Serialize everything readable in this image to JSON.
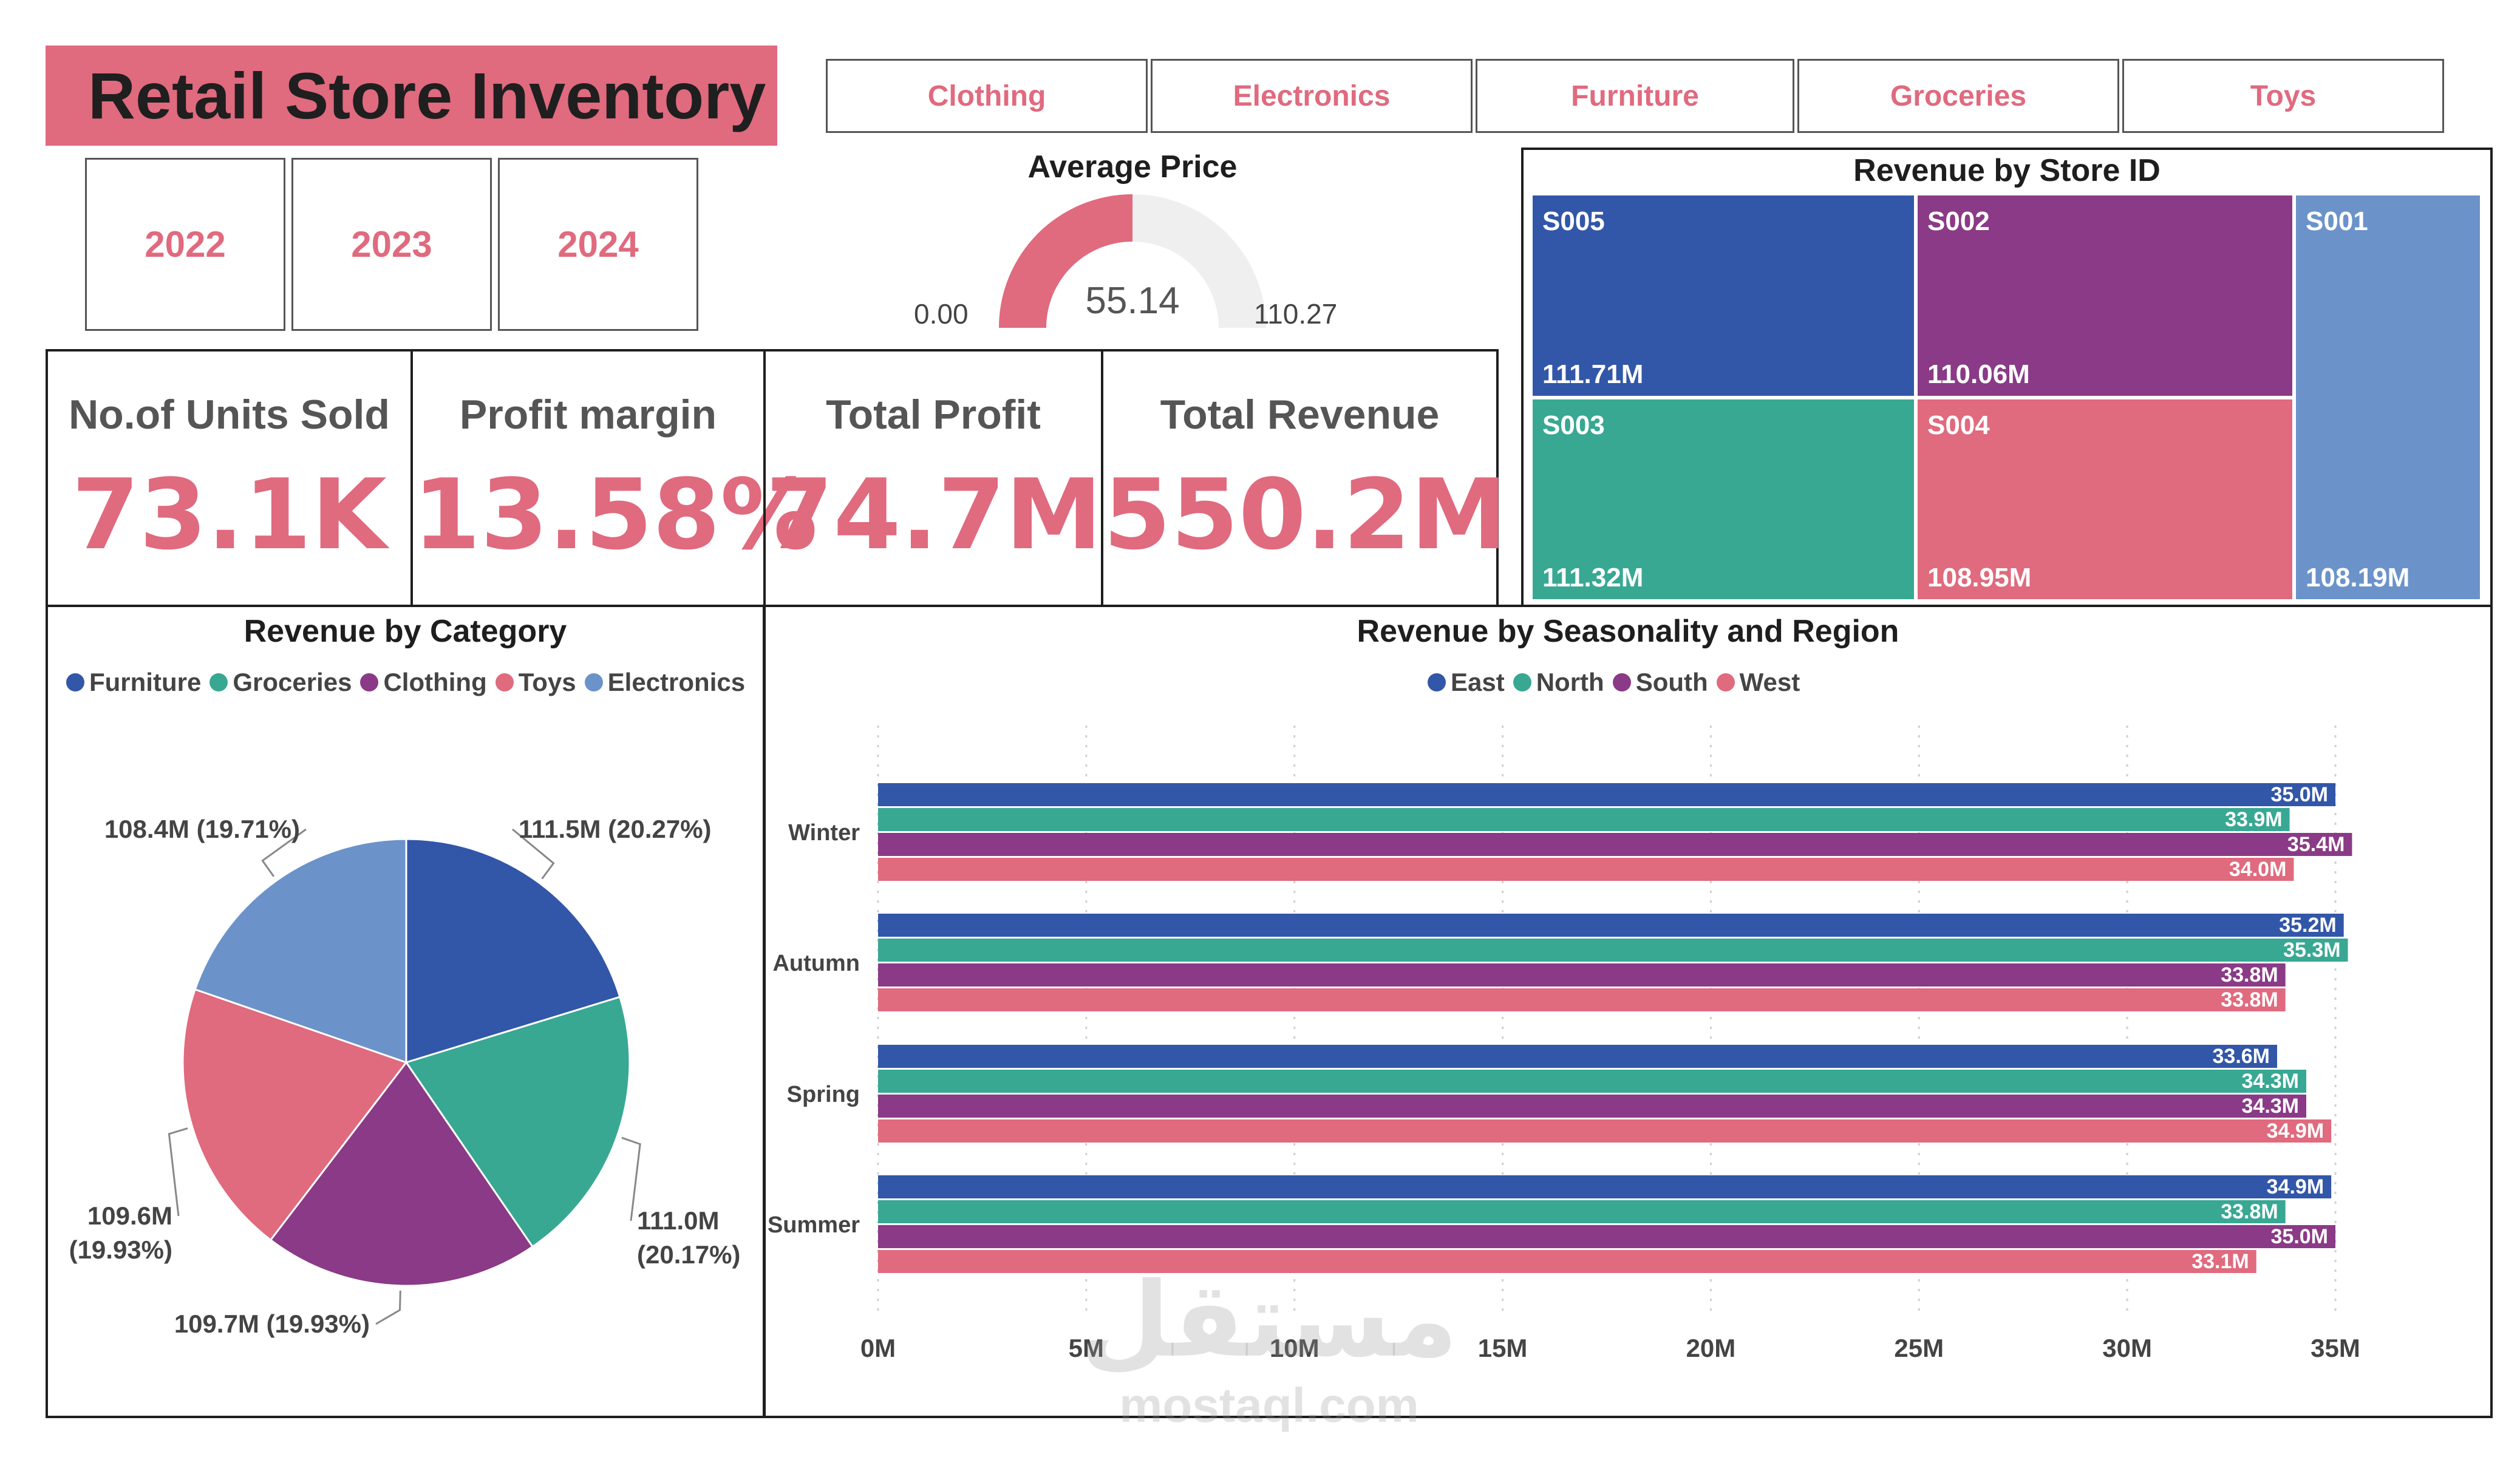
{
  "header": {
    "title": "Retail Store Inventory"
  },
  "category_filter": [
    "Clothing",
    "Electronics",
    "Furniture",
    "Groceries",
    "Toys"
  ],
  "year_filter": [
    "2022",
    "2023",
    "2024"
  ],
  "gauge": {
    "title": "Average Price",
    "min": "0.00",
    "value": "55.14",
    "max": "110.27",
    "min_num": 0,
    "value_num": 55.14,
    "max_num": 110.27
  },
  "kpis": [
    {
      "label": "No.of Units Sold",
      "value": "73.1K"
    },
    {
      "label": "Profit margin",
      "value": "13.58%"
    },
    {
      "label": "Total Profit",
      "value": "74.7M"
    },
    {
      "label": "Total Revenue",
      "value": "550.2M"
    }
  ],
  "treemap": {
    "title": "Revenue by Store ID",
    "tiles": [
      {
        "id": "S005",
        "value": "111.71M",
        "color": "#3256a8"
      },
      {
        "id": "S002",
        "value": "110.06M",
        "color": "#8a3a86"
      },
      {
        "id": "S001",
        "value": "",
        "color": "#6b93ca"
      },
      {
        "id": "S003",
        "value": "111.32M",
        "color": "#38a893"
      },
      {
        "id": "S004",
        "value": "108.95M",
        "color": "#e06a7e"
      },
      {
        "id": "",
        "value": "108.19M",
        "color": "#6b93ca"
      }
    ]
  },
  "colors": {
    "accent": "#e06a7e",
    "blue": "#3256a8",
    "teal": "#38a893",
    "purple": "#8a3a86",
    "pink": "#e06a7e",
    "lightblue": "#6b93ca",
    "gauge_track": "#efefef"
  },
  "chart_data": [
    {
      "type": "pie",
      "title": "Revenue by Category",
      "legend": [
        "Furniture",
        "Groceries",
        "Clothing",
        "Toys",
        "Electronics"
      ],
      "legend_colors": [
        "#3256a8",
        "#38a893",
        "#8a3a86",
        "#e06a7e",
        "#6b93ca"
      ],
      "slices": [
        {
          "name": "Furniture",
          "value": 111.5,
          "label": "111.5M (20.27%)",
          "color": "#3256a8"
        },
        {
          "name": "Groceries",
          "value": 111.0,
          "label": "111.0M (20.17%)",
          "color": "#38a893"
        },
        {
          "name": "Clothing",
          "value": 109.7,
          "label": "109.7M (19.93%)",
          "color": "#8a3a86"
        },
        {
          "name": "Toys",
          "value": 109.6,
          "label": "109.6M (19.93%)",
          "color": "#e06a7e"
        },
        {
          "name": "Electronics",
          "value": 108.4,
          "label": "108.4M (19.71%)",
          "color": "#6b93ca"
        }
      ],
      "legend_placement": "top"
    },
    {
      "type": "bar",
      "orientation": "horizontal",
      "title": "Revenue by Seasonality and Region",
      "categories": [
        "Winter",
        "Autumn",
        "Spring",
        "Summer"
      ],
      "series": [
        {
          "name": "East",
          "color": "#3256a8",
          "values": [
            35.0,
            35.2,
            33.6,
            34.9
          ],
          "labels": [
            "35.0M",
            "35.2M",
            "33.6M",
            "34.9M"
          ]
        },
        {
          "name": "North",
          "color": "#38a893",
          "values": [
            33.9,
            35.3,
            34.3,
            33.8
          ],
          "labels": [
            "33.9M",
            "35.3M",
            "34.3M",
            "33.8M"
          ]
        },
        {
          "name": "South",
          "color": "#8a3a86",
          "values": [
            35.4,
            33.8,
            34.3,
            35.0
          ],
          "labels": [
            "35.4M",
            "33.8M",
            "34.3M",
            "35.0M"
          ]
        },
        {
          "name": "West",
          "color": "#e06a7e",
          "values": [
            34.0,
            33.8,
            34.9,
            33.1
          ],
          "labels": [
            "34.0M",
            "33.8M",
            "34.9M",
            "33.1M"
          ]
        }
      ],
      "x_ticks": [
        0,
        5,
        10,
        15,
        20,
        25,
        30,
        35
      ],
      "x_tick_labels": [
        "0M",
        "5M",
        "10M",
        "15M",
        "20M",
        "25M",
        "30M",
        "35M"
      ],
      "xlim": [
        0,
        36
      ],
      "grid": true,
      "legend_placement": "top"
    }
  ],
  "watermark": {
    "arabic": "مستقل",
    "latin": "mostaql.com"
  }
}
